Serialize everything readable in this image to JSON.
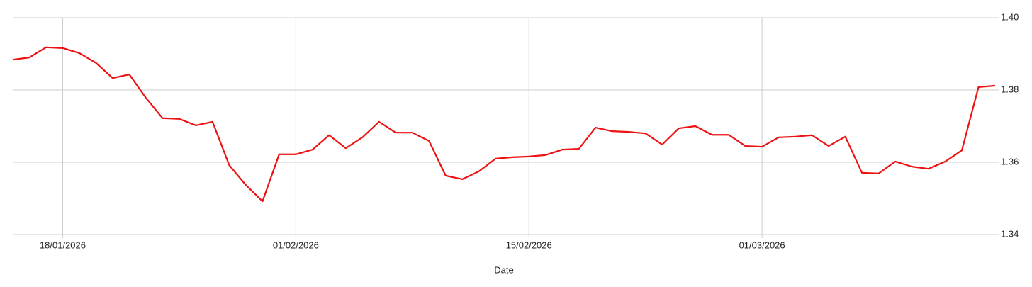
{
  "chart_data": {
    "type": "line",
    "x_label": "Date",
    "x": [
      "15/01/2026",
      "16/01/2026",
      "17/01/2026",
      "18/01/2026",
      "19/01/2026",
      "20/01/2026",
      "21/01/2026",
      "22/01/2026",
      "23/01/2026",
      "24/01/2026",
      "25/01/2026",
      "26/01/2026",
      "27/01/2026",
      "28/01/2026",
      "29/01/2026",
      "30/01/2026",
      "31/01/2026",
      "01/02/2026",
      "02/02/2026",
      "03/02/2026",
      "04/02/2026",
      "05/02/2026",
      "06/02/2026",
      "07/02/2026",
      "08/02/2026",
      "09/02/2026",
      "10/02/2026",
      "11/02/2026",
      "12/02/2026",
      "13/02/2026",
      "14/02/2026",
      "15/02/2026",
      "16/02/2026",
      "17/02/2026",
      "18/02/2026",
      "19/02/2026",
      "20/02/2026",
      "21/02/2026",
      "22/02/2026",
      "23/02/2026",
      "24/02/2026",
      "25/02/2026",
      "26/02/2026",
      "27/02/2026",
      "28/02/2026",
      "01/03/2026",
      "02/03/2026",
      "03/03/2026",
      "04/03/2026",
      "05/03/2026",
      "06/03/2026",
      "07/03/2026",
      "08/03/2026",
      "09/03/2026",
      "10/03/2026",
      "11/03/2026",
      "12/03/2026",
      "13/03/2026",
      "14/03/2026",
      "15/03/2026"
    ],
    "series": [
      {
        "color": "#ee1111",
        "values": [
          1.3884,
          1.389,
          1.3918,
          1.3916,
          1.3902,
          1.3875,
          1.3833,
          1.3843,
          1.3778,
          1.3722,
          1.372,
          1.3702,
          1.3712,
          1.3592,
          1.3537,
          1.3492,
          1.3622,
          1.3622,
          1.3635,
          1.3675,
          1.3639,
          1.3669,
          1.3712,
          1.3682,
          1.3682,
          1.3659,
          1.3563,
          1.3553,
          1.3575,
          1.361,
          1.3614,
          1.3616,
          1.362,
          1.3635,
          1.3637,
          1.3696,
          1.3686,
          1.3684,
          1.368,
          1.3649,
          1.3694,
          1.37,
          1.3676,
          1.3676,
          1.3645,
          1.3643,
          1.3669,
          1.3671,
          1.3675,
          1.3645,
          1.3671,
          1.3571,
          1.3569,
          1.3602,
          1.3588,
          1.3582,
          1.3602,
          1.3633,
          1.3808,
          1.3812
        ]
      }
    ],
    "xlim": [
      "15/01/2026",
      "15/03/2026"
    ],
    "xticks": [
      "18/01/2026",
      "01/02/2026",
      "15/02/2026",
      "01/03/2026"
    ],
    "ylim": [
      1.34,
      1.4
    ],
    "yticks": [
      1.34,
      1.36,
      1.38,
      {
        "value": 1.4,
        "label": "1.40"
      }
    ],
    "grid": true
  }
}
